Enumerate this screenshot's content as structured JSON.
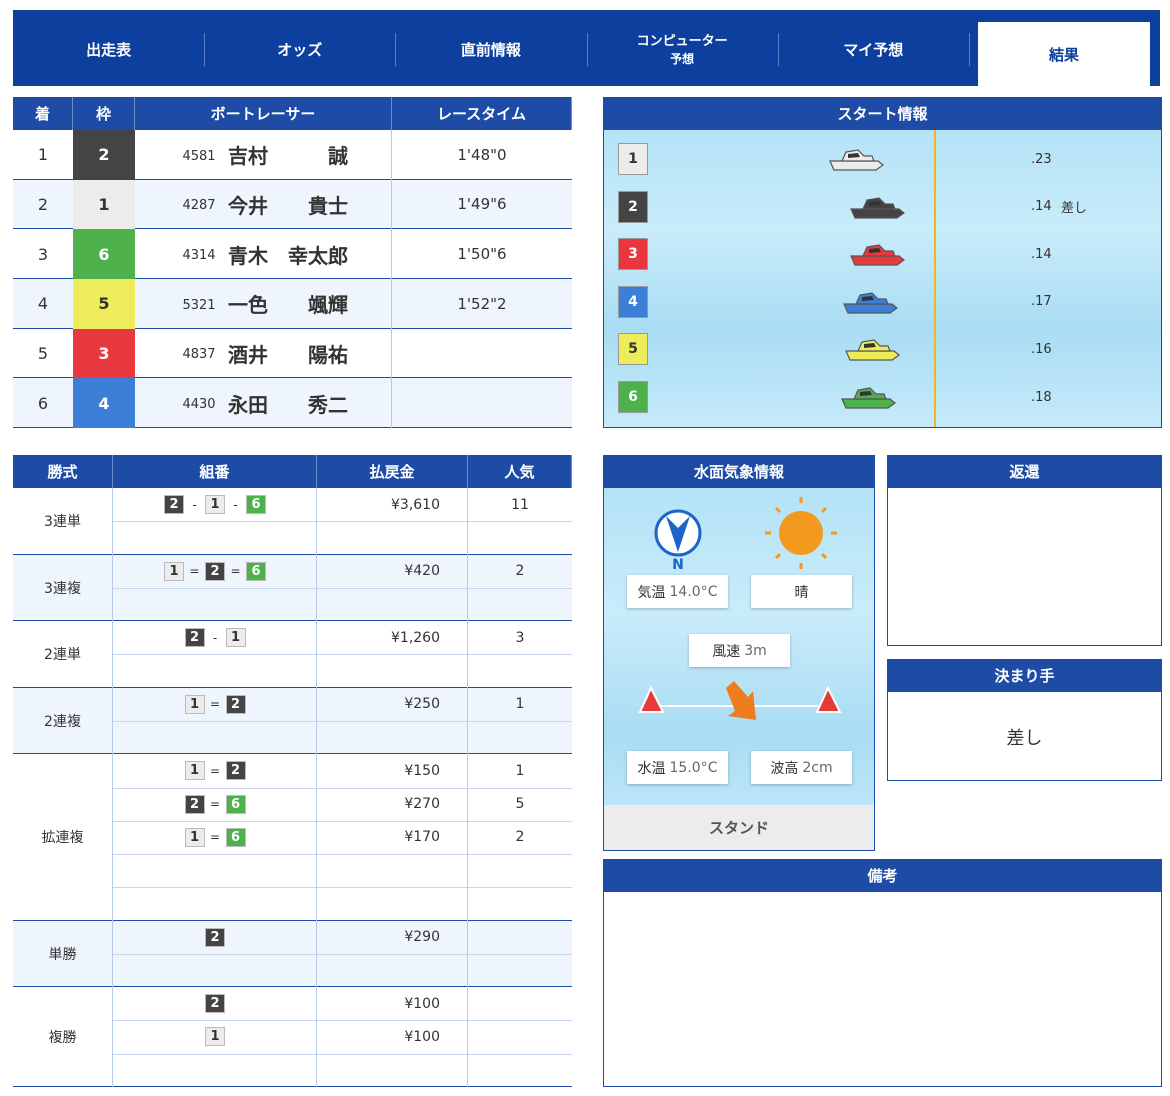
{
  "tabs": [
    [
      "出走表"
    ],
    [
      "オッズ"
    ],
    [
      "直前情報"
    ],
    [
      "コンピューター",
      "予想"
    ],
    [
      "マイ予想"
    ],
    [
      "結果"
    ]
  ],
  "active_tab": 5,
  "frame_colors": {
    "1": [
      "#ececec",
      "#333333"
    ],
    "2": [
      "#444444",
      "#ffffff"
    ],
    "3": [
      "#e8383d",
      "#ffffff"
    ],
    "4": [
      "#3d7fd6",
      "#ffffff"
    ],
    "5": [
      "#efec5c",
      "#333333"
    ],
    "6": [
      "#4fb14b",
      "#ffffff"
    ]
  },
  "result": {
    "headers": [
      "着",
      "枠",
      "ボートレーサー",
      "レースタイム"
    ],
    "rows": [
      {
        "rank": 1,
        "frame": 2,
        "reg": 4581,
        "surname": "吉村",
        "given": "誠",
        "time": "1'48\"0"
      },
      {
        "rank": 2,
        "frame": 1,
        "reg": 4287,
        "surname": "今井",
        "given": "貴士",
        "time": "1'49\"6"
      },
      {
        "rank": 3,
        "frame": 6,
        "reg": 4314,
        "surname": "青木",
        "given": "幸太郎",
        "time": "1'50\"6"
      },
      {
        "rank": 4,
        "frame": 5,
        "reg": 5321,
        "surname": "一色",
        "given": "颯輝",
        "time": "1'52\"2"
      },
      {
        "rank": 5,
        "frame": 3,
        "reg": 4837,
        "surname": "酒井",
        "given": "陽祐"
      },
      {
        "rank": 6,
        "frame": 4,
        "reg": 4430,
        "surname": "永田",
        "given": "秀二"
      }
    ]
  },
  "start": {
    "title": "スタート情報",
    "rows": [
      {
        "frame": 1,
        "st": ".23"
      },
      {
        "frame": 2,
        "st": ".14",
        "note": "差し"
      },
      {
        "frame": 3,
        "st": ".14"
      },
      {
        "frame": 4,
        "st": ".17"
      },
      {
        "frame": 5,
        "st": ".16"
      },
      {
        "frame": 6,
        "st": ".18"
      }
    ]
  },
  "payout": {
    "headers": [
      "勝式",
      "組番",
      "払戻金",
      "人気"
    ],
    "groups": [
      {
        "name": "3連単",
        "sep": "-",
        "rows": [
          {
            "combo": [
              2,
              1,
              6
            ],
            "amount": "¥3,610",
            "popularity": 11
          }
        ]
      },
      {
        "name": "3連複",
        "sep": "=",
        "rows": [
          {
            "combo": [
              1,
              2,
              6
            ],
            "amount": "¥420",
            "popularity": 2
          }
        ]
      },
      {
        "name": "2連単",
        "sep": "-",
        "rows": [
          {
            "combo": [
              2,
              1
            ],
            "amount": "¥1,260",
            "popularity": 3
          }
        ]
      },
      {
        "name": "2連複",
        "sep": "=",
        "rows": [
          {
            "combo": [
              1,
              2
            ],
            "amount": "¥250",
            "popularity": 1
          }
        ]
      },
      {
        "name": "拡連複",
        "sep": "=",
        "rows": [
          {
            "combo": [
              1,
              2
            ],
            "amount": "¥150",
            "popularity": 1
          },
          {
            "combo": [
              2,
              6
            ],
            "amount": "¥270",
            "popularity": 5
          },
          {
            "combo": [
              1,
              6
            ],
            "amount": "¥170",
            "popularity": 2
          }
        ]
      },
      {
        "name": "単勝",
        "rows": [
          {
            "combo": [
              2
            ],
            "amount": "¥290"
          }
        ]
      },
      {
        "name": "複勝",
        "rows": [
          {
            "combo": [
              2
            ],
            "amount": "¥100"
          },
          {
            "combo": [
              1
            ],
            "amount": "¥100"
          }
        ]
      }
    ]
  },
  "weather": {
    "title": "水面気象情報",
    "north": "N",
    "air_label": "気温",
    "air": "14.0°C",
    "condition": "晴",
    "wind_label": "風速",
    "wind": "3m",
    "water_label": "水温",
    "water": "15.0°C",
    "wave_label": "波高",
    "wave": "2cm",
    "stand": "スタンド"
  },
  "refund": {
    "title": "返還"
  },
  "kimarite": {
    "title": "決まり手",
    "value": "差し"
  },
  "remarks": {
    "title": "備考"
  }
}
